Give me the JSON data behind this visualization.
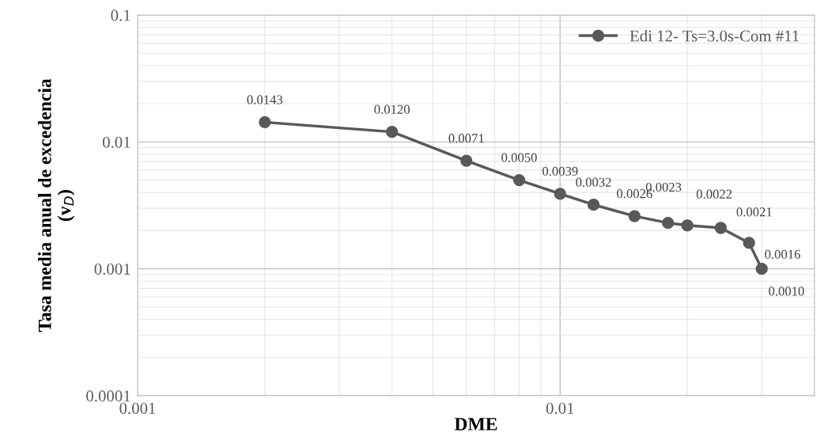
{
  "chart_data": {
    "type": "line",
    "xlabel": "DME",
    "ylabel": "Tasa media anual de excedencia\n(v$_{D}$)",
    "x": [
      0.002,
      0.004,
      0.006,
      0.008,
      0.01,
      0.012,
      0.015,
      0.018,
      0.02,
      0.024,
      0.028,
      0.03
    ],
    "series": [
      {
        "name": "Edi 12- Ts=3.0s-Com #11",
        "color": "#595959",
        "values": [
          0.0143,
          0.012,
          0.0071,
          0.005,
          0.0039,
          0.0032,
          0.0026,
          0.0023,
          0.0022,
          0.0021,
          0.0016,
          0.001
        ]
      }
    ],
    "value_labels": [
      "0.0143",
      "0.0120",
      "0.0071",
      "0.0050",
      "0.0039",
      "0.0032",
      "0.0026",
      "0.0023",
      "0.0022",
      "0.0021",
      "0.0016",
      "0.0010"
    ],
    "log": "xy",
    "xlim": [
      0.001,
      0.04
    ],
    "xticks": [
      0.001,
      0.01
    ],
    "ylim": [
      0.0001,
      0.1
    ],
    "yticks": [
      0.0001,
      0.001,
      0.01,
      0.1
    ],
    "grid": true,
    "legend": "top right",
    "marker": "circle",
    "line_style": "solid"
  }
}
